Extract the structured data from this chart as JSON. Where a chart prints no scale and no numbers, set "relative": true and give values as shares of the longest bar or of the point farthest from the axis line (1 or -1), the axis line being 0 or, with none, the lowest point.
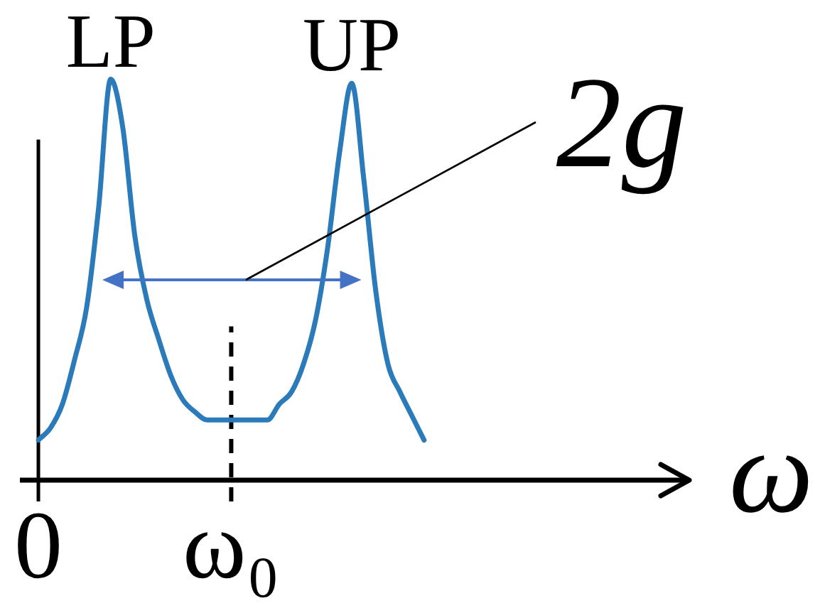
{
  "chart_data": {
    "type": "line",
    "relative": true,
    "xlabel": "ω",
    "categories": [
      "0",
      null,
      null,
      null,
      null,
      null,
      null,
      null,
      null,
      null,
      null,
      null,
      null,
      null,
      null,
      null,
      "ω₀",
      null,
      null,
      null,
      null,
      null,
      null,
      null,
      null,
      null,
      null,
      null,
      null,
      null,
      null,
      null,
      null,
      null,
      null,
      null,
      null,
      null,
      null,
      null,
      null,
      null,
      null,
      null,
      null,
      null,
      null,
      null,
      null,
      null,
      null,
      null,
      null,
      null,
      null
    ],
    "values": [
      0.1,
      0.13,
      0.19,
      0.3,
      0.43,
      0.68,
      1,
      0.88,
      0.61,
      0.45,
      0.35,
      0.26,
      0.2,
      0.17,
      0.15,
      0.15,
      0.15,
      0.15,
      0.15,
      0.15,
      0.19,
      0.22,
      0.29,
      0.4,
      0.58,
      0.82,
      0.99,
      0.75,
      0.47,
      0.29,
      0.22,
      0.16,
      0.1,
      null,
      null,
      null,
      null,
      null,
      null,
      null,
      null,
      null,
      null,
      null,
      null,
      null,
      null,
      null,
      null,
      null,
      null,
      null,
      null,
      null,
      null
    ],
    "color": "#2b7bba",
    "tick_labels": "x",
    "ref_lines": [
      {
        "axis": "x",
        "value": "ω₀",
        "color": "#000000",
        "line_style": "dashed"
      }
    ],
    "annotations": [
      "LP",
      "UP",
      "2g"
    ]
  }
}
